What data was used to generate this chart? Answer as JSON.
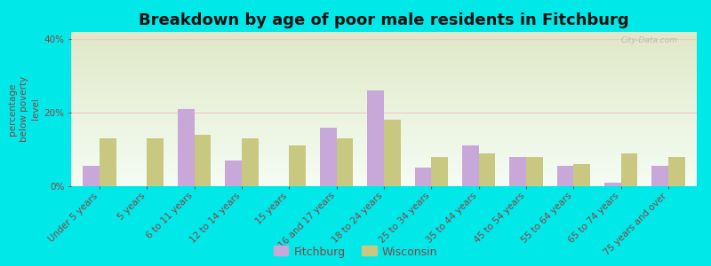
{
  "title": "Breakdown by age of poor male residents in Fitchburg",
  "ylabel": "percentage\nbelow poverty\nlevel",
  "categories": [
    "Under 5 years",
    "5 years",
    "6 to 11 years",
    "12 to 14 years",
    "15 years",
    "16 and 17 years",
    "18 to 24 years",
    "25 to 34 years",
    "35 to 44 years",
    "45 to 54 years",
    "55 to 64 years",
    "65 to 74 years",
    "75 years and over"
  ],
  "fitchburg": [
    5.5,
    0,
    21,
    7,
    0,
    16,
    26,
    5,
    11,
    8,
    5.5,
    1,
    5.5
  ],
  "wisconsin": [
    13,
    13,
    14,
    13,
    11,
    13,
    18,
    8,
    9,
    8,
    6,
    9,
    8
  ],
  "fitchburg_color": "#c8a8d8",
  "wisconsin_color": "#c8c880",
  "outer_bg": "#00e8e8",
  "ylim": [
    0,
    42
  ],
  "ytick_labels": [
    "0%",
    "20%",
    "40%"
  ],
  "ytick_vals": [
    0,
    20,
    40
  ],
  "bar_width": 0.35,
  "legend_fitchburg": "Fitchburg",
  "legend_wisconsin": "Wisconsin",
  "title_fontsize": 13,
  "axis_label_fontsize": 7.5,
  "tick_fontsize": 7.5,
  "legend_fontsize": 9,
  "grid_color": "#f0c8c8",
  "text_color": "#884444",
  "watermark": "City-Data.com"
}
